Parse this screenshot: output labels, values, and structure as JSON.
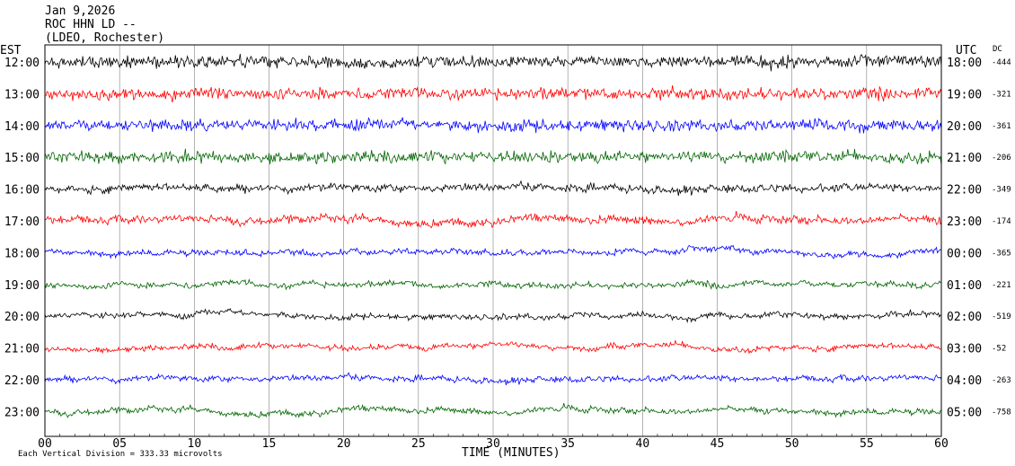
{
  "header": {
    "date": "Jan 9,2026",
    "station": "ROC HHN LD --",
    "location": "(LDEO, Rochester)"
  },
  "left_axis_title": "EST",
  "right_axis_title": "UTC",
  "dc_title": "DC",
  "footer": {
    "note": "Each Vertical Division =  333.33 microvolts",
    "xlabel": "TIME (MINUTES)"
  },
  "colors": {
    "black": "#000000",
    "red": "#ff0000",
    "blue": "#0000ff",
    "green": "#006400",
    "grid": "#808080"
  },
  "chart_data": {
    "type": "line",
    "xlabel": "TIME (MINUTES)",
    "xlim": [
      0,
      60
    ],
    "x_ticks": [
      "00",
      "05",
      "10",
      "15",
      "20",
      "25",
      "30",
      "35",
      "40",
      "45",
      "50",
      "55",
      "60"
    ],
    "rows": [
      {
        "est": "12:00",
        "utc": "18:00",
        "dc": "-444",
        "color": "black"
      },
      {
        "est": "13:00",
        "utc": "19:00",
        "dc": "-321",
        "color": "red"
      },
      {
        "est": "14:00",
        "utc": "20:00",
        "dc": "-361",
        "color": "blue"
      },
      {
        "est": "15:00",
        "utc": "21:00",
        "dc": "-206",
        "color": "green"
      },
      {
        "est": "16:00",
        "utc": "22:00",
        "dc": "-349",
        "color": "black"
      },
      {
        "est": "17:00",
        "utc": "23:00",
        "dc": "-174",
        "color": "red"
      },
      {
        "est": "18:00",
        "utc": "00:00",
        "dc": "-365",
        "color": "blue"
      },
      {
        "est": "19:00",
        "utc": "01:00",
        "dc": "-221",
        "color": "green"
      },
      {
        "est": "20:00",
        "utc": "02:00",
        "dc": "-519",
        "color": "black"
      },
      {
        "est": "21:00",
        "utc": "03:00",
        "dc": "-52",
        "color": "red"
      },
      {
        "est": "22:00",
        "utc": "04:00",
        "dc": "-263",
        "color": "blue"
      },
      {
        "est": "23:00",
        "utc": "05:00",
        "dc": "-758",
        "color": "green"
      }
    ]
  }
}
